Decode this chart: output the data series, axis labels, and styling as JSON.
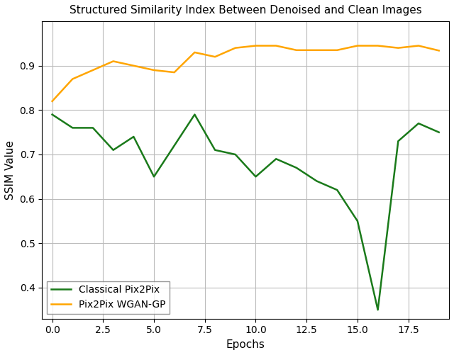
{
  "title": "Structured Similarity Index Between Denoised and Clean Images",
  "xlabel": "Epochs",
  "ylabel": "SSIM Value",
  "green_x": [
    0,
    1,
    2,
    3,
    4,
    5,
    6,
    7,
    8,
    9,
    10,
    11,
    12,
    13,
    14,
    15,
    16,
    17,
    18,
    19
  ],
  "green_y": [
    0.79,
    0.76,
    0.76,
    0.71,
    0.74,
    0.65,
    0.72,
    0.79,
    0.71,
    0.7,
    0.65,
    0.69,
    0.67,
    0.64,
    0.62,
    0.55,
    0.35,
    0.73,
    0.77,
    0.75
  ],
  "orange_x": [
    0,
    1,
    2,
    3,
    4,
    5,
    6,
    7,
    8,
    9,
    10,
    11,
    12,
    13,
    14,
    15,
    16,
    17,
    18,
    19
  ],
  "orange_y": [
    0.82,
    0.87,
    0.89,
    0.91,
    0.9,
    0.89,
    0.885,
    0.93,
    0.92,
    0.94,
    0.945,
    0.945,
    0.935,
    0.935,
    0.935,
    0.945,
    0.945,
    0.94,
    0.945,
    0.934
  ],
  "green_color": "#1a7a1a",
  "orange_color": "#ffa500",
  "green_label": "Classical Pix2Pix",
  "orange_label": "Pix2Pix WGAN-GP",
  "ylim": [
    0.33,
    1.0
  ],
  "xlim": [
    -0.5,
    19.5
  ],
  "xticks": [
    0.0,
    2.5,
    5.0,
    7.5,
    10.0,
    12.5,
    15.0,
    17.5
  ],
  "yticks": [
    0.4,
    0.5,
    0.6,
    0.7,
    0.8,
    0.9
  ],
  "grid": true,
  "legend_loc": "lower left",
  "linewidth": 1.8,
  "ax_facecolor": "#ffffff",
  "fig_facecolor": "#ffffff",
  "title_fontsize": 11,
  "label_fontsize": 11,
  "tick_fontsize": 10,
  "legend_fontsize": 10
}
